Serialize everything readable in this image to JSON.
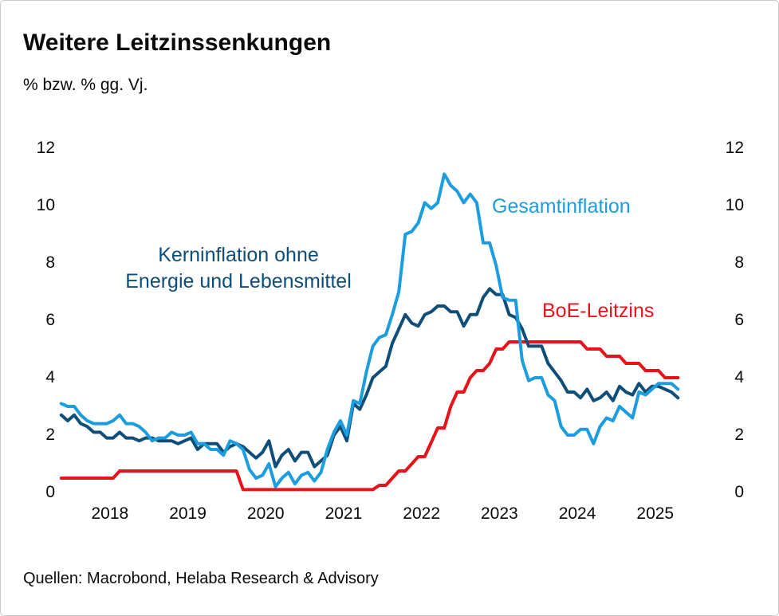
{
  "card": {
    "title": "Weitere Leitzinssenkungen",
    "subtitle": "% bzw. % gg. Vj.",
    "source": "Quellen: Macrobond, Helaba Research & Advisory"
  },
  "colors": {
    "headline": "#1B9DDE",
    "core": "#0E4E79",
    "policy": "#E8131A",
    "text": "#0A0A0A",
    "card_border": "#C9C9C9"
  },
  "chart_data": {
    "type": "line",
    "title": "Weitere Leitzinssenkungen",
    "unit_label": "% bzw. % gg. Vj.",
    "grid": false,
    "axis_lines": false,
    "ylim": [
      0,
      12
    ],
    "y_ticks": [
      "12",
      "10",
      "8",
      "6",
      "4",
      "2",
      "0"
    ],
    "y_tick_values": [
      12,
      10,
      8,
      6,
      4,
      2,
      0
    ],
    "y_axis_sides": [
      "left",
      "right"
    ],
    "x_year_labels": [
      "2018",
      "2019",
      "2020",
      "2021",
      "2022",
      "2023",
      "2024",
      "2025"
    ],
    "x_start_month": "2017-11",
    "x_end_month": "2025-10",
    "frequency": "monthly",
    "legend_position": "inline-annotations",
    "annotations": {
      "headline_label": "Gesamtinflation",
      "core_label_line1": "Kerninflation ohne",
      "core_label_line2": "Energie und Lebensmittel",
      "policy_label": "BoE-Leitzins"
    },
    "series": [
      {
        "name": "Gesamtinflation",
        "color": "#1B9DDE",
        "values": [
          3.1,
          3.0,
          3.0,
          2.7,
          2.5,
          2.4,
          2.4,
          2.4,
          2.5,
          2.7,
          2.4,
          2.4,
          2.3,
          2.1,
          1.8,
          1.9,
          1.9,
          2.1,
          2.0,
          2.0,
          2.1,
          1.7,
          1.7,
          1.5,
          1.5,
          1.3,
          1.8,
          1.7,
          1.5,
          0.8,
          0.5,
          0.6,
          1.0,
          0.2,
          0.5,
          0.7,
          0.3,
          0.6,
          0.7,
          0.4,
          0.7,
          1.5,
          2.1,
          2.5,
          2.0,
          3.2,
          3.1,
          4.2,
          5.1,
          5.4,
          5.5,
          6.2,
          7.0,
          9.0,
          9.1,
          9.4,
          10.1,
          9.9,
          10.1,
          11.1,
          10.7,
          10.5,
          10.1,
          10.4,
          10.1,
          8.7,
          8.7,
          7.9,
          6.8,
          6.7,
          6.7,
          4.6,
          3.9,
          4.0,
          4.0,
          3.4,
          3.2,
          2.3,
          2.0,
          2.0,
          2.2,
          2.2,
          1.7,
          2.3,
          2.6,
          2.5,
          3.0,
          2.8,
          2.6,
          3.5,
          3.4,
          3.6,
          3.8,
          3.8,
          3.8,
          3.6
        ]
      },
      {
        "name": "Kerninflation ohne Energie und Lebensmittel",
        "color": "#0E4E79",
        "values": [
          2.7,
          2.5,
          2.7,
          2.4,
          2.3,
          2.1,
          2.1,
          1.9,
          1.9,
          2.1,
          1.9,
          1.9,
          1.8,
          1.9,
          1.9,
          1.8,
          1.8,
          1.8,
          1.7,
          1.8,
          1.9,
          1.5,
          1.7,
          1.7,
          1.7,
          1.4,
          1.6,
          1.7,
          1.6,
          1.4,
          1.2,
          1.4,
          1.8,
          0.9,
          1.3,
          1.5,
          1.1,
          1.4,
          1.4,
          0.9,
          1.1,
          1.3,
          2.0,
          2.3,
          1.8,
          3.1,
          2.9,
          3.4,
          4.0,
          4.2,
          4.4,
          5.2,
          5.7,
          6.2,
          5.9,
          5.8,
          6.2,
          6.3,
          6.5,
          6.5,
          6.3,
          6.3,
          5.8,
          6.2,
          6.2,
          6.8,
          7.1,
          6.9,
          6.9,
          6.2,
          6.1,
          5.7,
          5.1,
          5.1,
          5.1,
          4.5,
          4.2,
          3.9,
          3.5,
          3.5,
          3.3,
          3.6,
          3.2,
          3.3,
          3.5,
          3.2,
          3.7,
          3.5,
          3.4,
          3.8,
          3.5,
          3.7,
          3.7,
          3.6,
          3.5,
          3.3
        ]
      },
      {
        "name": "BoE-Leitzins",
        "color": "#E8131A",
        "values": [
          0.5,
          0.5,
          0.5,
          0.5,
          0.5,
          0.5,
          0.5,
          0.5,
          0.5,
          0.75,
          0.75,
          0.75,
          0.75,
          0.75,
          0.75,
          0.75,
          0.75,
          0.75,
          0.75,
          0.75,
          0.75,
          0.75,
          0.75,
          0.75,
          0.75,
          0.75,
          0.75,
          0.75,
          0.1,
          0.1,
          0.1,
          0.1,
          0.1,
          0.1,
          0.1,
          0.1,
          0.1,
          0.1,
          0.1,
          0.1,
          0.1,
          0.1,
          0.1,
          0.1,
          0.1,
          0.1,
          0.1,
          0.1,
          0.1,
          0.25,
          0.25,
          0.5,
          0.75,
          0.75,
          1.0,
          1.25,
          1.25,
          1.75,
          2.25,
          2.25,
          3.0,
          3.5,
          3.5,
          4.0,
          4.25,
          4.25,
          4.5,
          5.0,
          5.0,
          5.25,
          5.25,
          5.25,
          5.25,
          5.25,
          5.25,
          5.25,
          5.25,
          5.25,
          5.25,
          5.25,
          5.25,
          5.0,
          5.0,
          5.0,
          4.75,
          4.75,
          4.75,
          4.5,
          4.5,
          4.5,
          4.25,
          4.25,
          4.25,
          4.0,
          4.0,
          4.0
        ]
      }
    ]
  }
}
